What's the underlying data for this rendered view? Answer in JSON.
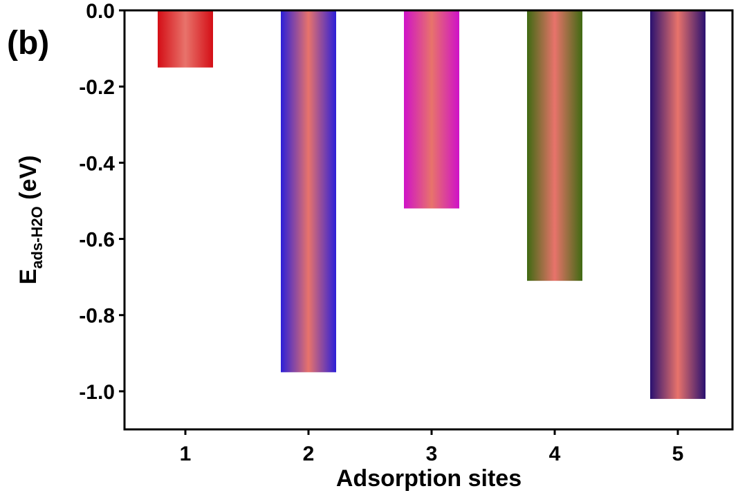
{
  "panel_label": "(b)",
  "chart_data": {
    "type": "bar",
    "categories": [
      "1",
      "2",
      "3",
      "4",
      "5"
    ],
    "values": [
      -0.15,
      -0.95,
      -0.52,
      -0.71,
      -1.02
    ],
    "xlabel": "Adsorption sites",
    "ylabel": {
      "main": "E",
      "subscript": "ads-H2O",
      "unit": " (eV)"
    },
    "ylim": [
      -1.1,
      0.0
    ],
    "yticks": [
      0.0,
      -0.2,
      -0.4,
      -0.6,
      -0.8,
      -1.0
    ],
    "ytick_labels": [
      "0.0",
      "-0.2",
      "-0.4",
      "-0.6",
      "-0.8",
      "-1.0"
    ],
    "grid": false,
    "bar_center_color": "#e8736b",
    "bar_edge_colors": [
      "#d40e16",
      "#2c1fd8",
      "#cf12c8",
      "#3f6a12",
      "#2a1170"
    ]
  }
}
